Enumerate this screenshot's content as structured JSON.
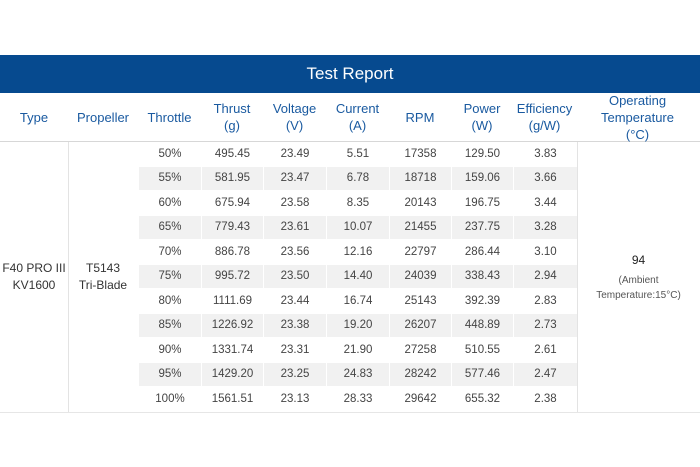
{
  "title": "Test Report",
  "headers": {
    "type": "Type",
    "propeller": "Propeller",
    "throttle": "Throttle",
    "thrust": [
      "Thrust",
      "(g)"
    ],
    "voltage": [
      "Voltage",
      "(V)"
    ],
    "current": [
      "Current",
      "(A)"
    ],
    "rpm": "RPM",
    "power": [
      "Power",
      "(W)"
    ],
    "efficiency": [
      "Efficiency",
      "(g/W)"
    ],
    "temperature": [
      "Operating",
      "Temperature",
      "(°C)"
    ]
  },
  "motor": [
    "F40 PRO III",
    "KV1600"
  ],
  "propeller": [
    "T5143",
    "Tri-Blade"
  ],
  "rows": [
    [
      "50%",
      "495.45",
      "23.49",
      "5.51",
      "17358",
      "129.50",
      "3.83"
    ],
    [
      "55%",
      "581.95",
      "23.47",
      "6.78",
      "18718",
      "159.06",
      "3.66"
    ],
    [
      "60%",
      "675.94",
      "23.58",
      "8.35",
      "20143",
      "196.75",
      "3.44"
    ],
    [
      "65%",
      "779.43",
      "23.61",
      "10.07",
      "21455",
      "237.75",
      "3.28"
    ],
    [
      "70%",
      "886.78",
      "23.56",
      "12.16",
      "22797",
      "286.44",
      "3.10"
    ],
    [
      "75%",
      "995.72",
      "23.50",
      "14.40",
      "24039",
      "338.43",
      "2.94"
    ],
    [
      "80%",
      "1111.69",
      "23.44",
      "16.74",
      "25143",
      "392.39",
      "2.83"
    ],
    [
      "85%",
      "1226.92",
      "23.38",
      "19.20",
      "26207",
      "448.89",
      "2.73"
    ],
    [
      "90%",
      "1331.74",
      "23.31",
      "21.90",
      "27258",
      "510.55",
      "2.61"
    ],
    [
      "95%",
      "1429.20",
      "23.25",
      "24.83",
      "28242",
      "577.46",
      "2.47"
    ],
    [
      "100%",
      "1561.51",
      "23.13",
      "28.33",
      "29642",
      "655.32",
      "2.38"
    ]
  ],
  "temperature": {
    "value": "94",
    "note": [
      "(Ambient",
      "Temperature:15°C)"
    ]
  },
  "colors": {
    "banner": "#064a8f",
    "header_text": "#1a5aa0",
    "shaded_row": "#f1f1f1"
  }
}
